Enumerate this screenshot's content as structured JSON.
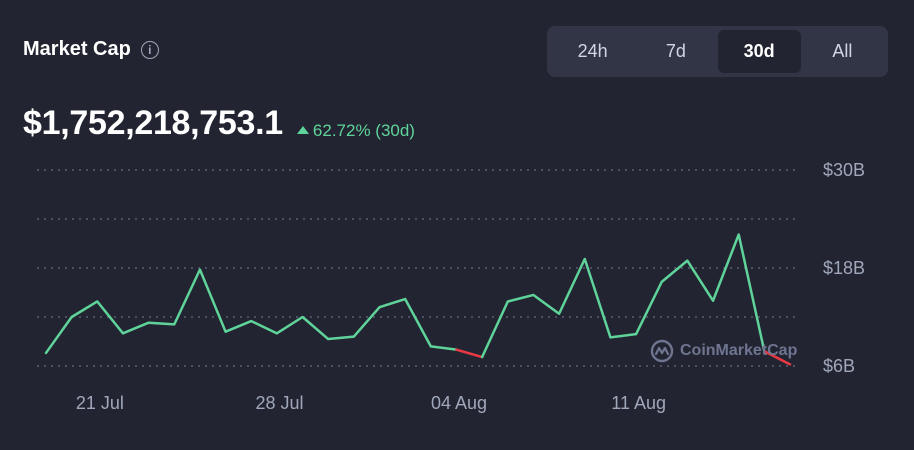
{
  "header": {
    "title": "Market Cap",
    "info_icon": "info-icon"
  },
  "range_tabs": {
    "items": [
      {
        "label": "24h",
        "active": false
      },
      {
        "label": "7d",
        "active": false
      },
      {
        "label": "30d",
        "active": true
      },
      {
        "label": "All",
        "active": false
      }
    ]
  },
  "summary": {
    "value": "$1,752,218,753.1",
    "change": "62.72% (30d)",
    "change_color": "#5fd39a"
  },
  "watermark": {
    "text": "CoinMarketCap",
    "icon": "coinmarketcap-logo-icon"
  },
  "colors": {
    "background": "#222531",
    "up": "#5fd39a",
    "down": "#ea3943",
    "grid": "#5a5f73"
  },
  "chart_data": {
    "type": "line",
    "title": "",
    "xlabel": "",
    "ylabel": "",
    "ylim": [
      6,
      30
    ],
    "y_ticks": [
      {
        "value": 30,
        "label": "$30B"
      },
      {
        "value": 18,
        "label": "$18B"
      },
      {
        "value": 6,
        "label": "$6B"
      }
    ],
    "x_ticks": [
      {
        "index": 2,
        "label": "21 Jul"
      },
      {
        "index": 9,
        "label": "28 Jul"
      },
      {
        "index": 16,
        "label": "04 Aug"
      },
      {
        "index": 23,
        "label": "11 Aug"
      }
    ],
    "grid": true,
    "series": [
      {
        "values": [
          7.6,
          12.0,
          13.9,
          10.0,
          11.3,
          11.1,
          17.8,
          10.2,
          11.5,
          10.0,
          12.0,
          9.3,
          9.6,
          13.2,
          14.2,
          8.4,
          8.0,
          7.1,
          13.9,
          14.7,
          12.4,
          19.1,
          9.5,
          9.9,
          16.3,
          18.9,
          14.0,
          22.1,
          7.8,
          6.2
        ]
      }
    ],
    "down_segments": [
      [
        16,
        17
      ],
      [
        28,
        29
      ]
    ]
  }
}
